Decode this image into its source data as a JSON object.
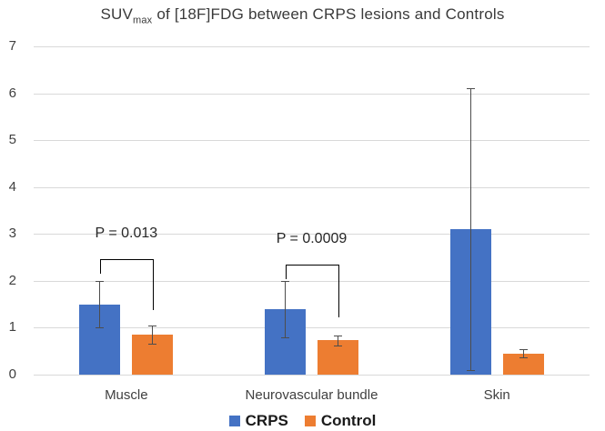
{
  "title": {
    "prefix": "SUV",
    "subscript": "max",
    "suffix": " of [18F]FDG between CRPS lesions and Controls"
  },
  "chart_data": {
    "type": "bar",
    "title": "SUVmax of [18F]FDG between CRPS lesions and Controls",
    "categories": [
      "Muscle",
      "Neurovascular bundle",
      "Skin"
    ],
    "series": [
      {
        "name": "CRPS",
        "color": "#4472C4",
        "values": [
          1.5,
          1.4,
          3.1
        ],
        "errors": [
          0.5,
          0.6,
          3.0
        ]
      },
      {
        "name": "Control",
        "color": "#ED7D31",
        "values": [
          0.85,
          0.73,
          0.45
        ],
        "errors": [
          0.2,
          0.1,
          0.09
        ]
      }
    ],
    "ylim": [
      0,
      7
    ],
    "yticks": [
      0,
      1,
      2,
      3,
      4,
      5,
      6,
      7
    ],
    "grid": true,
    "legend_position": "bottom",
    "annotations": [
      {
        "category": "Muscle",
        "label": "P = 0.013",
        "bracket_y": 2.47,
        "left_drop_to": 2.15,
        "right_drop_to": 1.38
      },
      {
        "category": "Neurovascular bundle",
        "label": "P = 0.0009",
        "bracket_y": 2.35,
        "left_drop_to": 2.04,
        "right_drop_to": 1.23
      }
    ],
    "colors": {
      "gridline": "#d9d9d9",
      "error_bar": "#4d4d4d",
      "bracket": "#000000",
      "tick_text": "#404040"
    }
  }
}
